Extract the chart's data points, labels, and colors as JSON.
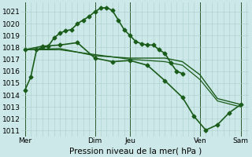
{
  "title": "Pression niveau de la mer( hPa )",
  "bg_color": "#cce8e8",
  "grid_color": "#aacccc",
  "line_color": "#1a5c1a",
  "ylim": [
    1010.5,
    1021.8
  ],
  "yticks": [
    1011,
    1012,
    1013,
    1014,
    1015,
    1016,
    1017,
    1018,
    1019,
    1020,
    1021
  ],
  "series": [
    {
      "x": [
        0,
        0.5,
        1.0,
        1.5,
        2.0,
        2.5,
        3.0,
        3.5,
        4.0,
        4.5,
        5.0,
        5.5,
        6.0,
        6.5,
        7.0,
        7.5,
        8.0,
        8.5,
        9.0,
        9.5,
        10.0,
        10.5,
        11.0,
        11.5,
        12.0,
        12.5,
        13.0,
        13.5
      ],
      "y": [
        1014.4,
        1015.5,
        1017.8,
        1018.0,
        1018.1,
        1018.8,
        1019.2,
        1019.4,
        1019.5,
        1020.0,
        1020.3,
        1020.6,
        1021.0,
        1021.3,
        1021.35,
        1021.1,
        1020.3,
        1019.5,
        1019.0,
        1018.5,
        1018.3,
        1018.2,
        1018.2,
        1017.8,
        1017.5,
        1016.7,
        1016.0,
        1015.8
      ],
      "marker": "D",
      "markersize": 2.5,
      "linewidth": 1.2
    },
    {
      "x": [
        0,
        1.5,
        3.0,
        4.5,
        6.0,
        7.5,
        9.0,
        10.5,
        12.0,
        13.5,
        14.5,
        15.5,
        16.5,
        17.5,
        18.5
      ],
      "y": [
        1017.8,
        1018.1,
        1018.2,
        1018.4,
        1017.1,
        1016.8,
        1016.9,
        1016.5,
        1015.2,
        1013.8,
        1012.2,
        1011.05,
        1011.5,
        1012.5,
        1013.2
      ],
      "marker": "D",
      "markersize": 2.5,
      "linewidth": 1.2
    },
    {
      "x": [
        0,
        3.0,
        6.0,
        9.0,
        12.0,
        13.5,
        15.0,
        16.5,
        18.5
      ],
      "y": [
        1017.8,
        1017.9,
        1017.3,
        1017.1,
        1017.1,
        1016.8,
        1015.7,
        1013.7,
        1013.2
      ],
      "marker": null,
      "markersize": 0,
      "linewidth": 1.0
    },
    {
      "x": [
        0,
        3.0,
        6.0,
        9.0,
        12.0,
        13.5,
        15.0,
        16.5,
        18.5
      ],
      "y": [
        1017.8,
        1017.8,
        1017.4,
        1017.0,
        1016.8,
        1016.5,
        1015.3,
        1013.5,
        1013.0
      ],
      "marker": null,
      "markersize": 0,
      "linewidth": 0.9
    }
  ],
  "vline_positions": [
    0,
    6.0,
    9.0,
    15.0,
    18.5
  ],
  "vline_color": "#2d5a2d",
  "xtick_positions": [
    0,
    6.0,
    9.0,
    15.0,
    18.5
  ],
  "xtick_labels": [
    "Mer",
    "Dim",
    "Jeu",
    "Ven",
    "Sam"
  ]
}
